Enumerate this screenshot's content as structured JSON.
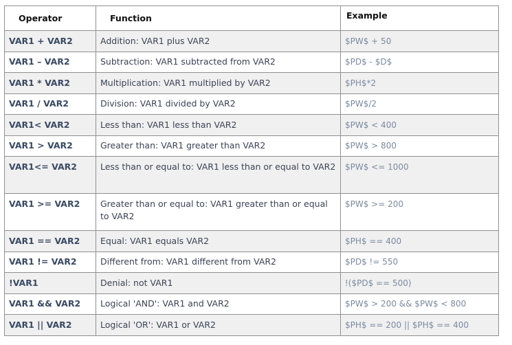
{
  "headers": {
    "operator": "Operator",
    "function": "Function",
    "example": "Example"
  },
  "rows": [
    {
      "operator": "VAR1 + VAR2",
      "function": "Addition: VAR1 plus VAR2",
      "example": "$PW$ + 50"
    },
    {
      "operator": "VAR1 – VAR2",
      "function": "Subtraction: VAR1 subtracted from VAR2",
      "example": "$PD$ - $D$"
    },
    {
      "operator": "VAR1 * VAR2",
      "function": "Multiplication: VAR1 multiplied by VAR2",
      "example": "$PH$*2"
    },
    {
      "operator": "VAR1 / VAR2",
      "function": "Division: VAR1 divided by VAR2",
      "example": "$PW$/2"
    },
    {
      "operator": "VAR1< VAR2",
      "function": "Less than: VAR1 less than VAR2",
      "example": "$PW$ < 400"
    },
    {
      "operator": "VAR1 > VAR2",
      "function": "Greater than: VAR1 greater than VAR2",
      "example": "$PW$ > 800"
    },
    {
      "operator": "VAR1<= VAR2",
      "function": "Less than or equal to: VAR1 less than or equal to VAR2",
      "example": "$PW$ <= 1000"
    },
    {
      "operator": "VAR1 >= VAR2",
      "function": "Greater than or equal to: VAR1 greater than or equal to VAR2",
      "example": "$PW$ >= 200"
    },
    {
      "operator": "VAR1 == VAR2",
      "function": "Equal: VAR1 equals VAR2",
      "example": "$PH$ == 400"
    },
    {
      "operator": "VAR1 != VAR2",
      "function": "Different from: VAR1 different from VAR2",
      "example": "$PD$ != 550"
    },
    {
      "operator": "!VAR1",
      "function": "Denial: not VAR1",
      "example": "!($PD$ == 500)"
    },
    {
      "operator": "VAR1 && VAR2",
      "function": "Logical 'AND': VAR1 and VAR2",
      "example": "$PW$ > 200 && $PW$ < 800"
    },
    {
      "operator": "VAR1 || VAR2",
      "function": "Logical 'OR': VAR1 or VAR2",
      "example": "$PH$ == 200 || $PH$ == 400"
    }
  ],
  "colors": {
    "shaded_row": "#f0f0f0",
    "border": "#8f8f8f",
    "operator_text": "#394a63",
    "example_text": "#7a8aa0"
  }
}
